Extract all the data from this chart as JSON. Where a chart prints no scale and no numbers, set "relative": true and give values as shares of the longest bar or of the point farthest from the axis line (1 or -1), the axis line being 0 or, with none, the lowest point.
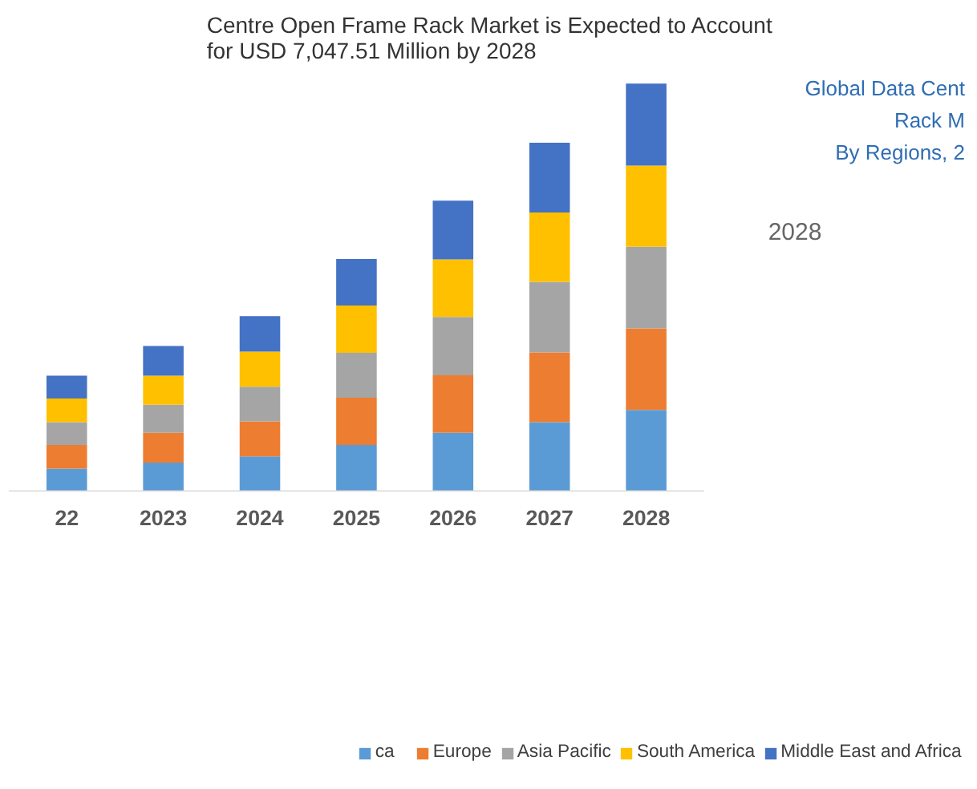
{
  "chart_data": {
    "type": "bar",
    "stacked": true,
    "relative": true,
    "legend": "bottom",
    "title": "Centre Open Frame Rack Market is Expected to Account for USD 7,047.51 Million by 2028",
    "annotations": [
      "Global Data Cent",
      "Rack M",
      "By Regions, 2",
      "2028"
    ],
    "categories": [
      "22",
      "2023",
      "2024",
      "2025",
      "2026",
      "2027",
      "2028"
    ],
    "series": [
      {
        "name": "ca",
        "color": "#5b9bd5",
        "values": [
          0.056,
          0.071,
          0.086,
          0.114,
          0.144,
          0.17,
          0.2
        ]
      },
      {
        "name": "Europe",
        "color": "#ed7d31",
        "values": [
          0.058,
          0.073,
          0.086,
          0.116,
          0.141,
          0.171,
          0.2
        ]
      },
      {
        "name": "Asia Pacific",
        "color": "#a5a5a5",
        "values": [
          0.056,
          0.069,
          0.085,
          0.11,
          0.143,
          0.173,
          0.2
        ]
      },
      {
        "name": "South America",
        "color": "#ffc000",
        "values": [
          0.058,
          0.071,
          0.086,
          0.116,
          0.141,
          0.17,
          0.199
        ]
      },
      {
        "name": "Middle East and Africa",
        "color": "#4472c4",
        "values": [
          0.056,
          0.073,
          0.087,
          0.114,
          0.144,
          0.171,
          0.201
        ]
      }
    ]
  }
}
